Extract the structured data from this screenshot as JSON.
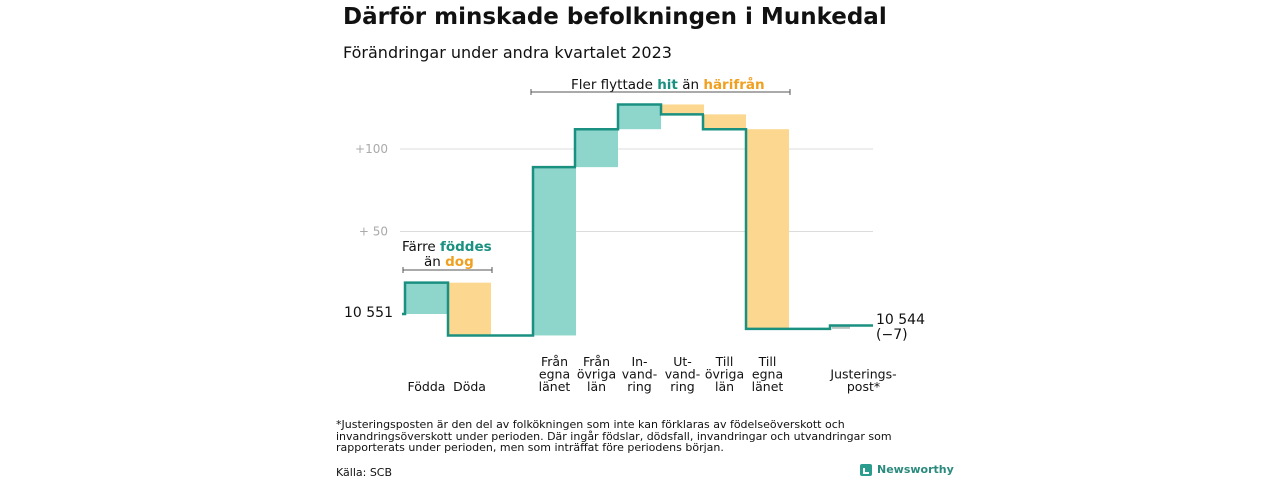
{
  "title": "Därför minskade befolkningen i Munkedal",
  "subtitle": "Förändringar under andra kvartalet 2023",
  "colors": {
    "increase": "#8ed6cc",
    "decrease": "#fbd78f",
    "line": "#1a9080",
    "hit_text": "#1a9080",
    "dog_text": "#f0a020",
    "adjust": "#b8c4bf"
  },
  "chart_data": {
    "type": "waterfall",
    "start": {
      "label": "10 551",
      "value": 10551
    },
    "end": {
      "label": "10 544",
      "sublabel": "(−7)",
      "value": 10544
    },
    "y_ticks": [
      {
        "label": "+100",
        "offset": 100
      },
      {
        "label": "+  50",
        "offset": 50
      }
    ],
    "categories": [
      {
        "label_lines": [
          "Födda"
        ],
        "delta": 19,
        "kind": "increase"
      },
      {
        "label_lines": [
          "Döda"
        ],
        "delta": -32,
        "kind": "decrease"
      },
      {
        "label_lines": [
          "Från",
          "egna",
          "länet"
        ],
        "delta": 102,
        "kind": "increase"
      },
      {
        "label_lines": [
          "Från",
          "övriga",
          "län"
        ],
        "delta": 23,
        "kind": "increase"
      },
      {
        "label_lines": [
          "In-",
          "vand-",
          "ring"
        ],
        "delta": 15,
        "kind": "increase"
      },
      {
        "label_lines": [
          "Ut-",
          "vand-",
          "ring"
        ],
        "delta": -6,
        "kind": "decrease"
      },
      {
        "label_lines": [
          "Till",
          "övriga",
          "län"
        ],
        "delta": -9,
        "kind": "decrease"
      },
      {
        "label_lines": [
          "Till",
          "egna",
          "länet"
        ],
        "delta": -121,
        "kind": "decrease"
      },
      {
        "label_lines": [
          "Justerings-",
          "post*"
        ],
        "delta": 2,
        "kind": "adjust"
      }
    ],
    "annotations": {
      "birth_death": {
        "line1": "Färre",
        "word_hit": "föddes",
        "line2": "än",
        "word_dog": "dog"
      },
      "migration": {
        "prefix": "Fler flyttade",
        "word_hit": "hit",
        "mid": "än",
        "word_away": "härifrån"
      }
    }
  },
  "footnote": "*Justeringsposten är den del av folkökningen som inte kan förklaras av födelseöverskott och invandringsöverskott under perioden. Där ingår födslar, dödsfall, invandringar och utvandringar som rapporterats under perioden, men som inträffat före periodens början.",
  "source": "Källa: SCB",
  "brand": "Newsworthy"
}
